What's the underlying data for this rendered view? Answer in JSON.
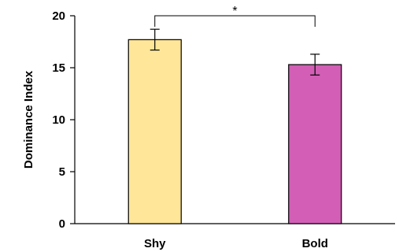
{
  "chart_data": {
    "type": "bar",
    "categories": [
      "Shy",
      "Bold"
    ],
    "values": [
      17.7,
      15.3
    ],
    "errors": [
      1.0,
      1.0
    ],
    "colors": [
      "#FFE699",
      "#D25FB5"
    ],
    "ylabel": "Dominance Index",
    "xlabel": "",
    "ylim": [
      0,
      20
    ],
    "yticks": [
      0,
      5,
      10,
      15,
      20
    ],
    "ytick_labels": [
      "0",
      "5",
      "10",
      "15",
      "20"
    ],
    "grid": false,
    "significance": {
      "between": [
        "Shy",
        "Bold"
      ],
      "label": "*"
    }
  }
}
